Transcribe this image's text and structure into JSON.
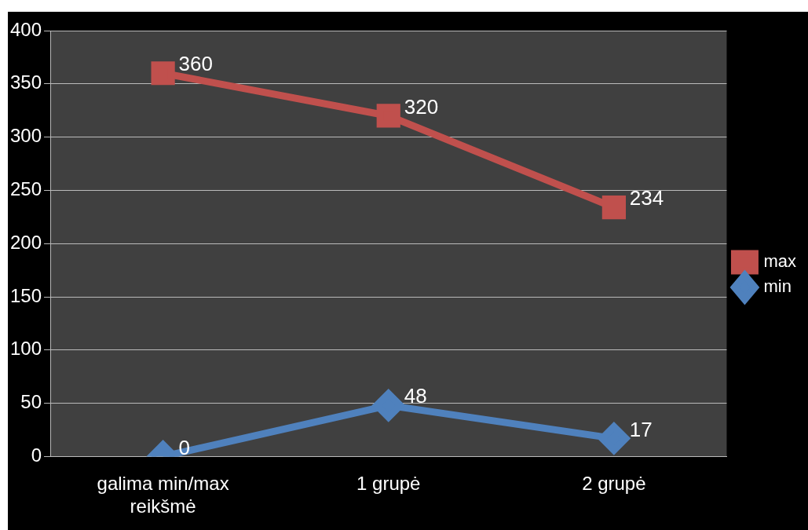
{
  "chart_data": {
    "type": "line",
    "categories": [
      "galima min/max reikšmė",
      "1 grupė",
      "2 grupė"
    ],
    "series": [
      {
        "name": "max",
        "color": "#c0504d",
        "values": [
          360,
          320,
          234
        ],
        "marker": "square"
      },
      {
        "name": "min",
        "color": "#4f81bd",
        "values": [
          0,
          48,
          17
        ],
        "marker": "diamond"
      }
    ],
    "ylim": [
      0,
      400
    ],
    "yticks": [
      0,
      50,
      100,
      150,
      200,
      250,
      300,
      350,
      400
    ],
    "grid": "y",
    "legend": "right",
    "data_labels": true
  }
}
